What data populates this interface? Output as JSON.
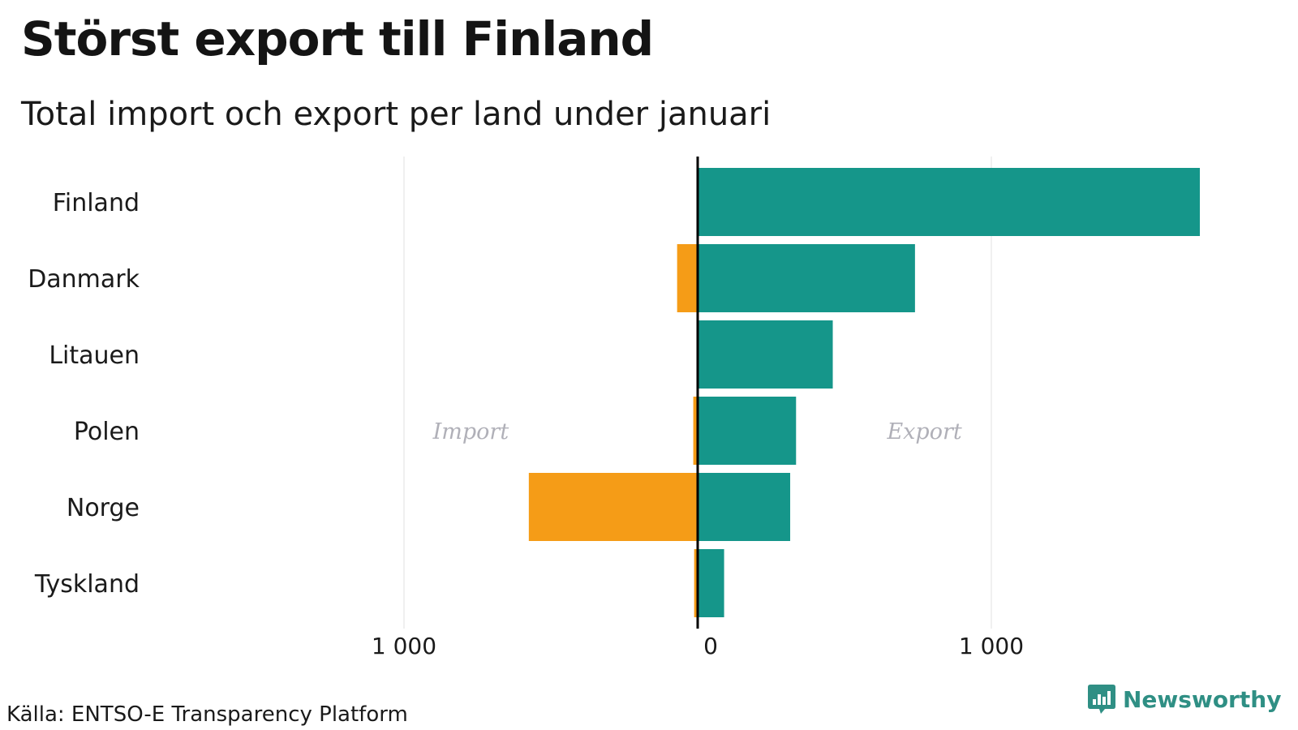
{
  "title": "Störst export till Finland",
  "subtitle": "Total import och export per land under januari",
  "source": "Källa: ENTSO-E Transparency Platform",
  "brand": {
    "name": "Newsworthy",
    "icon": "newsworthy-logo-icon",
    "color": "#2f8f84"
  },
  "colors": {
    "export": "#15968a",
    "import": "#f59c17",
    "grid": "#e6e6e6",
    "zero_line": "#000000",
    "annotation": "#b0b0b8"
  },
  "chart_data": {
    "type": "bar",
    "orientation": "horizontal",
    "categories": [
      "Finland",
      "Danmark",
      "Litauen",
      "Polen",
      "Norge",
      "Tyskland"
    ],
    "series": [
      {
        "name": "Import",
        "values": [
          0,
          -70,
          0,
          -15,
          -575,
          -12
        ]
      },
      {
        "name": "Export",
        "values": [
          1710,
          740,
          460,
          335,
          315,
          90
        ]
      }
    ],
    "xlim": [
      -1000,
      1750
    ],
    "x_ticks": [
      {
        "value": -1000,
        "label": "1 000"
      },
      {
        "value": 0,
        "label": "0"
      },
      {
        "value": 1000,
        "label": "1 000"
      }
    ],
    "annotations": [
      {
        "text": "Import",
        "x": -800,
        "row": "Polen"
      },
      {
        "text": "Export",
        "x": 800,
        "row": "Polen"
      }
    ],
    "grid": true,
    "legend": "none"
  }
}
